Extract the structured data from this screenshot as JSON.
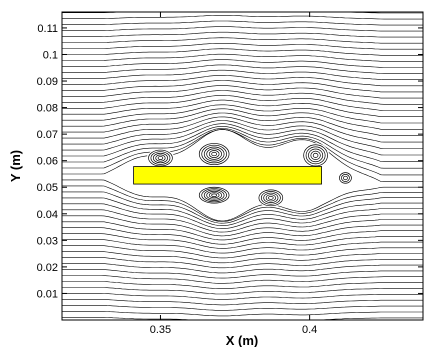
{
  "chart_data": {
    "type": "streamline",
    "title": "",
    "xlabel": "X (m)",
    "ylabel": "Y (m)",
    "xlim": [
      0.317,
      0.438
    ],
    "ylim": [
      0.0,
      0.116
    ],
    "x_ticks": [
      0.35,
      0.4
    ],
    "x_tick_labels": [
      "0.35",
      "0.4"
    ],
    "y_ticks": [
      0.01,
      0.02,
      0.03,
      0.04,
      0.05,
      0.06,
      0.07,
      0.08,
      0.09,
      0.1,
      0.11
    ],
    "y_tick_labels": [
      "0.01",
      "0.02",
      "0.03",
      "0.04",
      "0.05",
      "0.06",
      "0.07",
      "0.08",
      "0.09",
      "0.1",
      "0.11"
    ],
    "grid": false,
    "obstacle": {
      "shape": "rectangle",
      "x_range": [
        0.341,
        0.404
      ],
      "y_range": [
        0.0512,
        0.0578
      ],
      "color": "#ffff00"
    },
    "vortices": [
      {
        "x": 0.35,
        "y": 0.061,
        "rx": 0.004,
        "ry": 0.003,
        "rings": 5
      },
      {
        "x": 0.368,
        "y": 0.0625,
        "rx": 0.005,
        "ry": 0.004,
        "rings": 6
      },
      {
        "x": 0.402,
        "y": 0.062,
        "rx": 0.004,
        "ry": 0.004,
        "rings": 5
      },
      {
        "x": 0.368,
        "y": 0.047,
        "rx": 0.005,
        "ry": 0.003,
        "rings": 6
      },
      {
        "x": 0.387,
        "y": 0.046,
        "rx": 0.004,
        "ry": 0.003,
        "rings": 5
      },
      {
        "x": 0.412,
        "y": 0.0535,
        "rx": 0.002,
        "ry": 0.002,
        "rings": 3
      }
    ],
    "colors": {
      "streamline": "#000000",
      "obstacle": "#ffff00",
      "axes": "#000000"
    }
  }
}
